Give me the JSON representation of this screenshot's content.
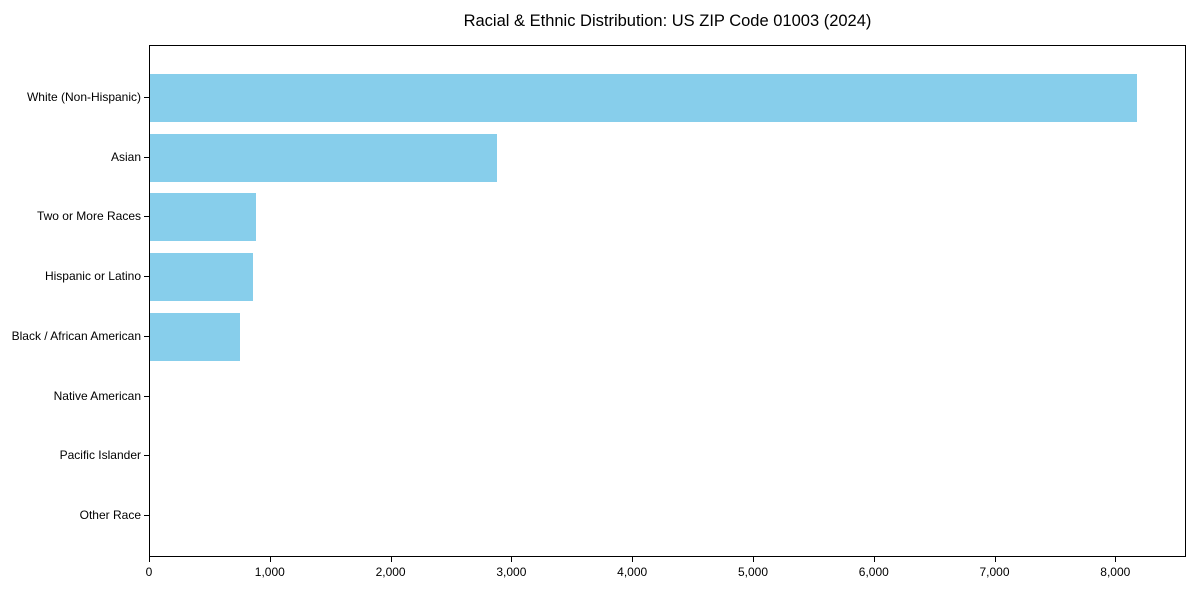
{
  "chart_data": {
    "type": "bar",
    "orientation": "horizontal",
    "title": "Racial & Ethnic Distribution: US ZIP Code 01003 (2024)",
    "categories": [
      "White (Non-Hispanic)",
      "Asian",
      "Two or More Races",
      "Hispanic or Latino",
      "Black / African American",
      "Native American",
      "Pacific Islander",
      "Other Race"
    ],
    "values": [
      8170,
      2870,
      880,
      850,
      745,
      0,
      0,
      0
    ],
    "bar_color": "#87CEEB",
    "xlabel": "",
    "ylabel": "",
    "xlim": [
      0,
      8585
    ],
    "x_ticks": [
      0,
      1000,
      2000,
      3000,
      4000,
      5000,
      6000,
      7000,
      8000
    ],
    "x_tick_labels": [
      "0",
      "1,000",
      "2,000",
      "3,000",
      "4,000",
      "5,000",
      "6,000",
      "7,000",
      "8,000"
    ],
    "grid": false,
    "legend_position": "none"
  }
}
